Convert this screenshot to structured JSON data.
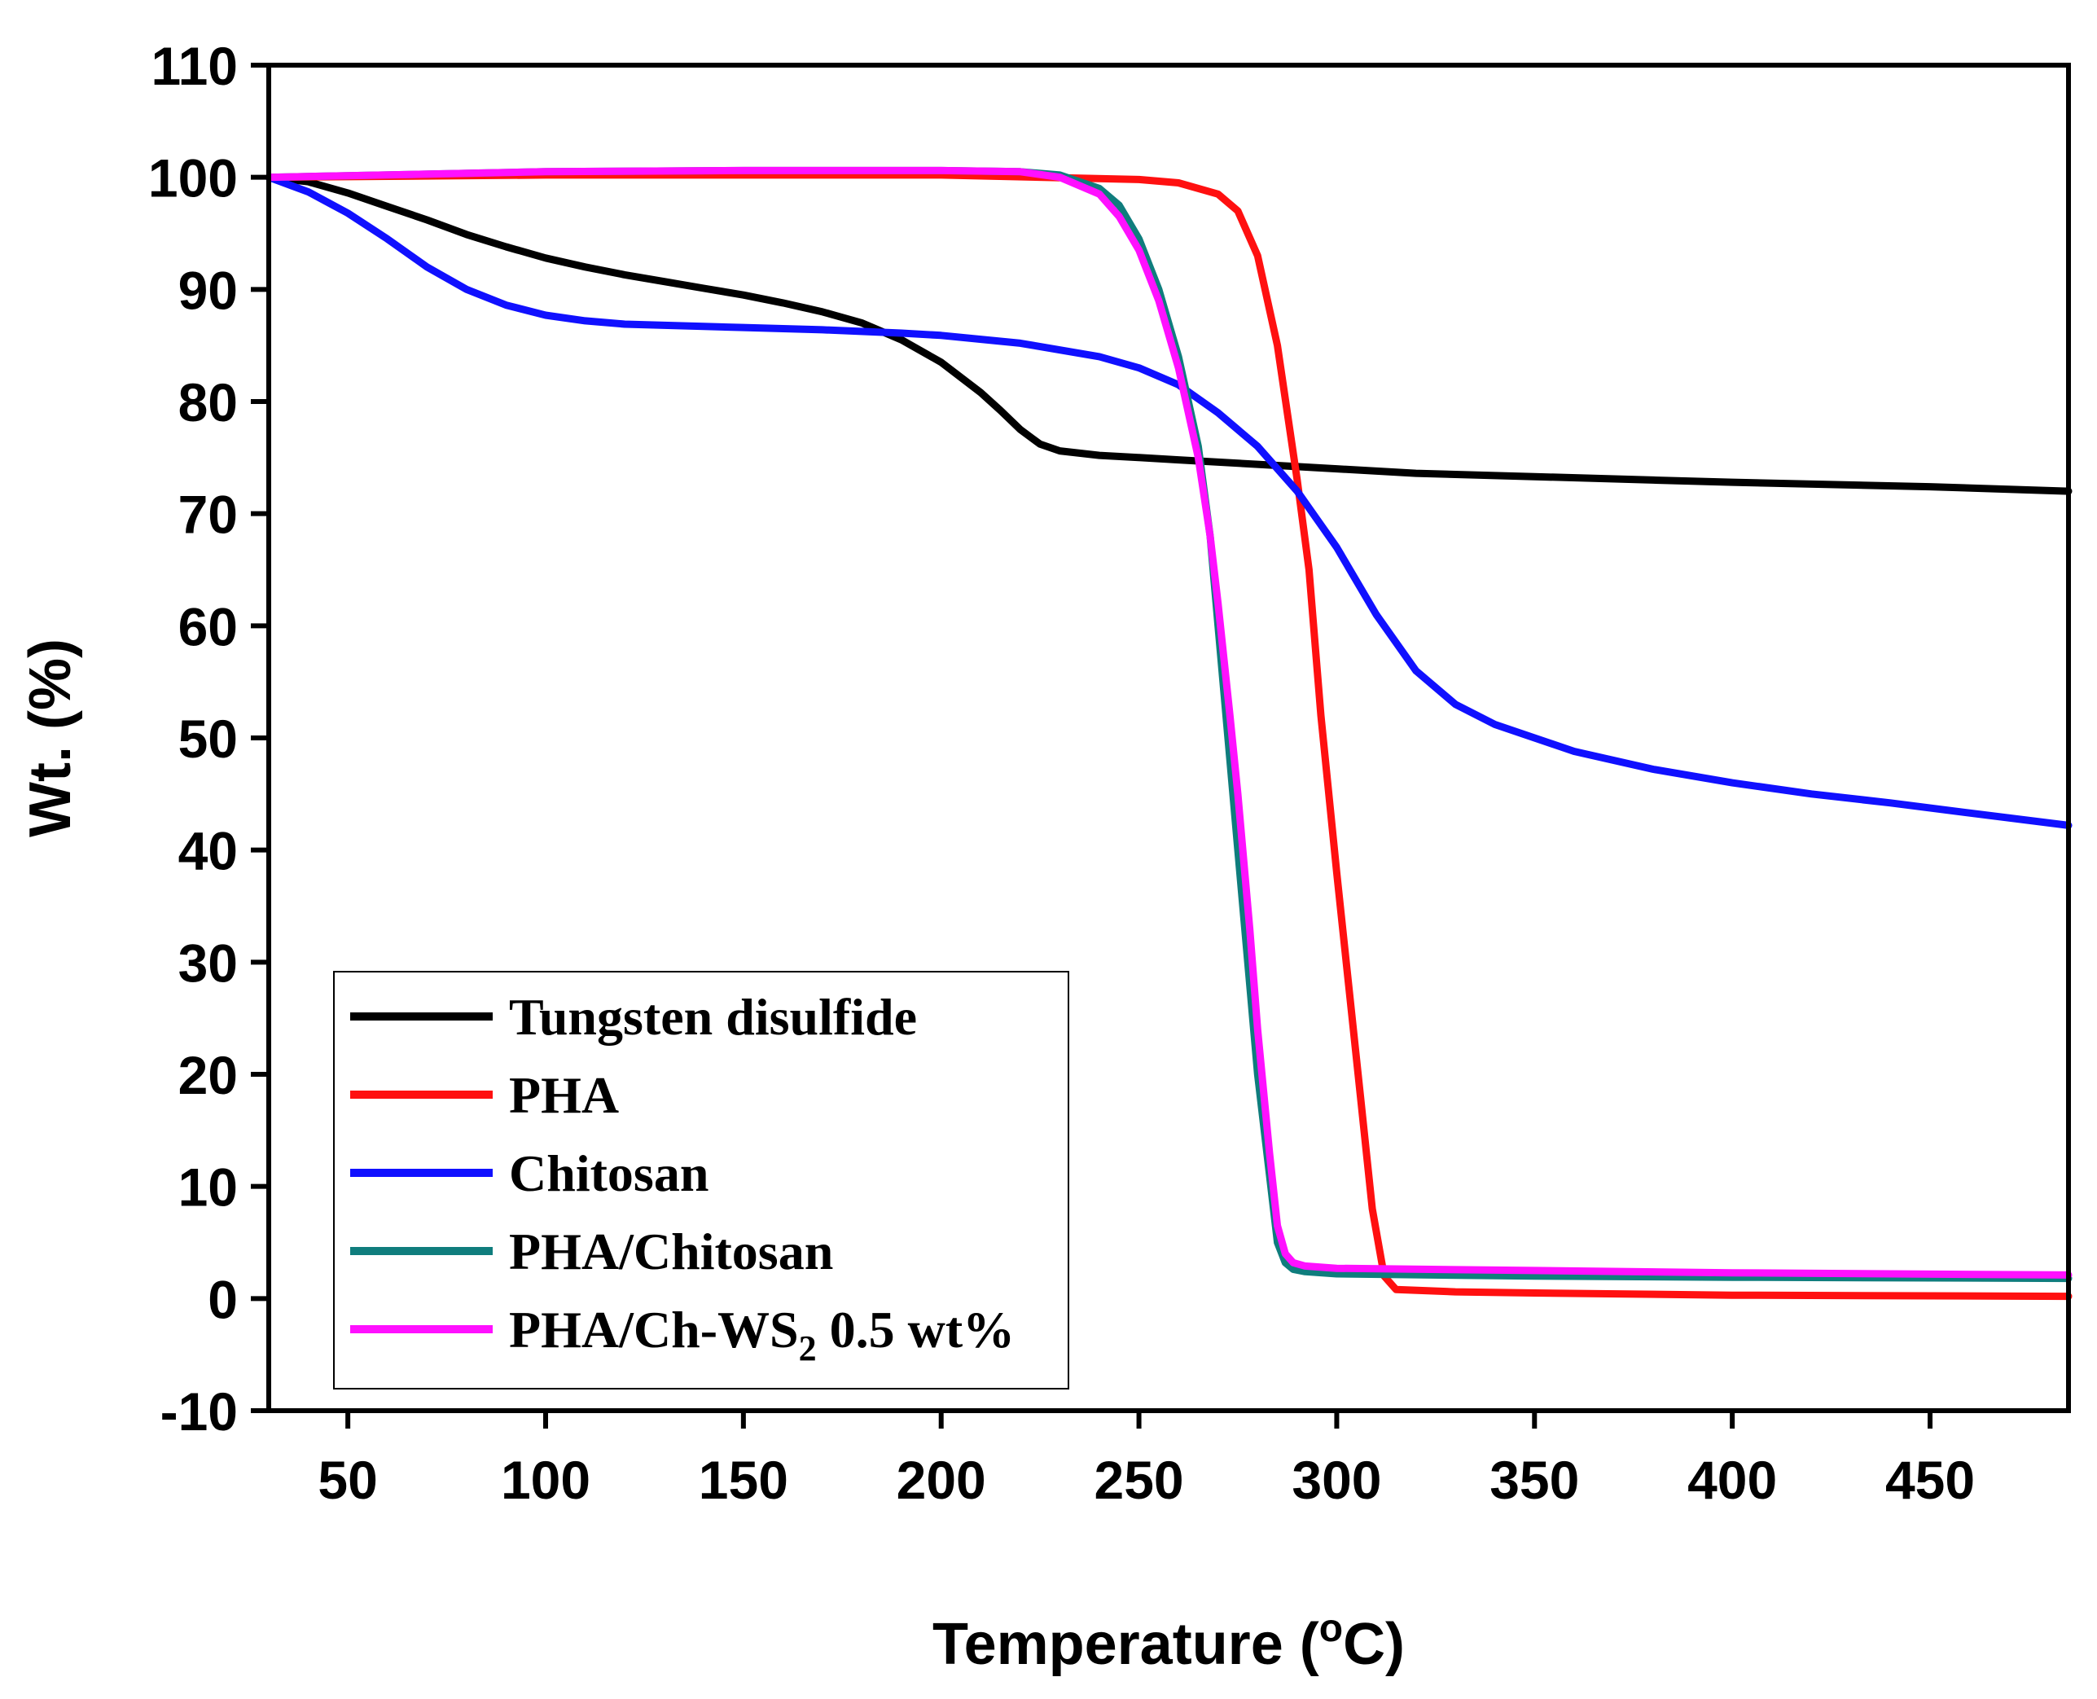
{
  "chart_data": {
    "type": "line",
    "xlabel": "Temperature (",
    "xlabel_sup": "o",
    "xlabel_end": "C)",
    "ylabel": "Wt. (%)",
    "xlim": [
      30,
      485
    ],
    "ylim": [
      -10,
      110
    ],
    "xticks": [
      50,
      100,
      150,
      200,
      250,
      300,
      350,
      400,
      450
    ],
    "yticks": [
      -10,
      0,
      10,
      20,
      30,
      40,
      50,
      60,
      70,
      80,
      90,
      100,
      110
    ],
    "legend_position": "bottom-left",
    "series": [
      {
        "name": "Tungsten disulfide",
        "color": "#000000",
        "x": [
          30,
          40,
          50,
          60,
          70,
          80,
          90,
          100,
          110,
          120,
          130,
          140,
          150,
          160,
          170,
          180,
          190,
          200,
          210,
          215,
          220,
          225,
          230,
          240,
          250,
          260,
          280,
          300,
          320,
          350,
          380,
          400,
          450,
          485
        ],
        "y": [
          100,
          99.6,
          98.6,
          97.4,
          96.2,
          94.9,
          93.8,
          92.8,
          92.0,
          91.3,
          90.7,
          90.1,
          89.5,
          88.8,
          88.0,
          87.0,
          85.5,
          83.5,
          80.8,
          79.2,
          77.5,
          76.2,
          75.6,
          75.2,
          75.0,
          74.8,
          74.4,
          74.0,
          73.6,
          73.3,
          73.0,
          72.8,
          72.4,
          72.0
        ]
      },
      {
        "name": "PHA",
        "color": "#ff1010",
        "x": [
          30,
          100,
          200,
          250,
          260,
          270,
          275,
          280,
          285,
          290,
          293,
          296,
          300,
          303,
          306,
          309,
          312,
          315,
          330,
          350,
          400,
          485
        ],
        "y": [
          100,
          100.2,
          100.2,
          99.8,
          99.5,
          98.5,
          97.0,
          93.0,
          85.0,
          73.0,
          65.0,
          52.0,
          38.0,
          28.0,
          18.0,
          8.0,
          2.0,
          0.8,
          0.6,
          0.5,
          0.3,
          0.2
        ]
      },
      {
        "name": "Chitosan",
        "color": "#1010ff",
        "x": [
          30,
          40,
          50,
          60,
          70,
          80,
          90,
          100,
          110,
          120,
          130,
          140,
          150,
          170,
          190,
          200,
          220,
          240,
          250,
          260,
          270,
          280,
          290,
          300,
          310,
          320,
          330,
          340,
          350,
          360,
          380,
          400,
          420,
          440,
          460,
          485
        ],
        "y": [
          100,
          98.7,
          96.8,
          94.5,
          92.0,
          90.0,
          88.6,
          87.7,
          87.2,
          86.9,
          86.8,
          86.7,
          86.6,
          86.4,
          86.1,
          85.9,
          85.2,
          84.0,
          83.0,
          81.5,
          79.0,
          76.0,
          72.0,
          67.0,
          61.0,
          56.0,
          53.0,
          51.2,
          50.0,
          48.8,
          47.2,
          46.0,
          45.0,
          44.2,
          43.3,
          42.2
        ]
      },
      {
        "name": "PHA/Chitosan",
        "color": "#0f7d7d",
        "x": [
          30,
          100,
          150,
          200,
          220,
          230,
          240,
          245,
          250,
          255,
          260,
          265,
          268,
          270,
          273,
          275,
          278,
          280,
          283,
          285,
          287,
          289,
          292,
          300,
          350,
          400,
          485
        ],
        "y": [
          100,
          100.5,
          100.6,
          100.6,
          100.5,
          100.2,
          99.0,
          97.5,
          94.5,
          90.0,
          84.0,
          76.0,
          68.0,
          60.0,
          48.0,
          40.0,
          28.0,
          20.0,
          11.0,
          5.0,
          3.2,
          2.6,
          2.4,
          2.2,
          2.0,
          1.9,
          1.8
        ]
      },
      {
        "name": "PHA/Ch-WS",
        "name_sub": "2",
        "name_end": " 0.5 wt%",
        "color": "#ff10ff",
        "x": [
          30,
          100,
          150,
          200,
          220,
          230,
          240,
          245,
          250,
          255,
          260,
          265,
          268,
          270,
          273,
          275,
          278,
          280,
          283,
          285,
          287,
          289,
          292,
          300,
          350,
          400,
          485
        ],
        "y": [
          100,
          100.5,
          100.6,
          100.6,
          100.5,
          100.0,
          98.5,
          96.5,
          93.5,
          89.0,
          83.0,
          75.0,
          68.0,
          62.0,
          52.0,
          45.0,
          33.0,
          24.0,
          13.0,
          6.5,
          4.0,
          3.2,
          2.9,
          2.7,
          2.5,
          2.3,
          2.1
        ]
      }
    ]
  }
}
